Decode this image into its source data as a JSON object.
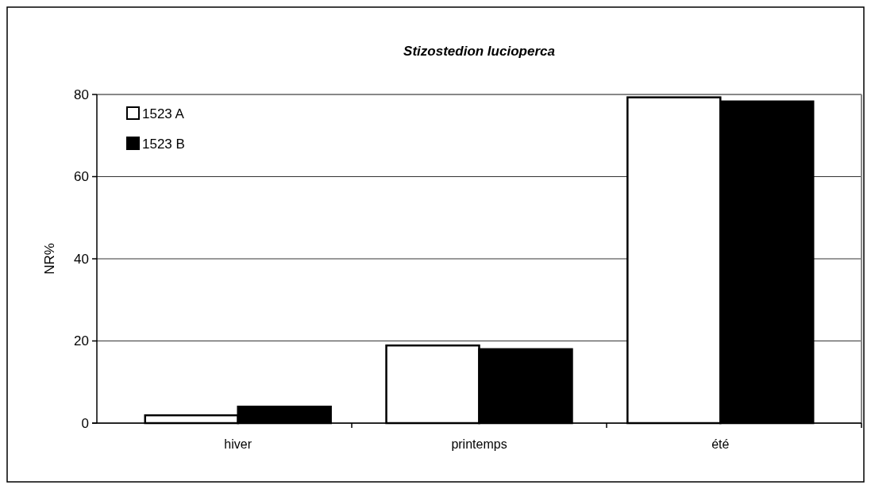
{
  "chart_data": {
    "type": "bar",
    "title": "Stizostedion lucioperca",
    "ylabel": "NR%",
    "categories": [
      "hiver",
      "printemps",
      "été"
    ],
    "series": [
      {
        "name": "1523 A",
        "color": "#ffffff",
        "values": [
          1.9,
          18.9,
          79.3
        ]
      },
      {
        "name": "1523 B",
        "color": "#000000",
        "values": [
          4.0,
          18.0,
          78.3
        ]
      }
    ],
    "ylim": [
      0,
      80
    ],
    "yticks": [
      0,
      20,
      40,
      60,
      80
    ],
    "grid": "y",
    "legend": "top left"
  }
}
